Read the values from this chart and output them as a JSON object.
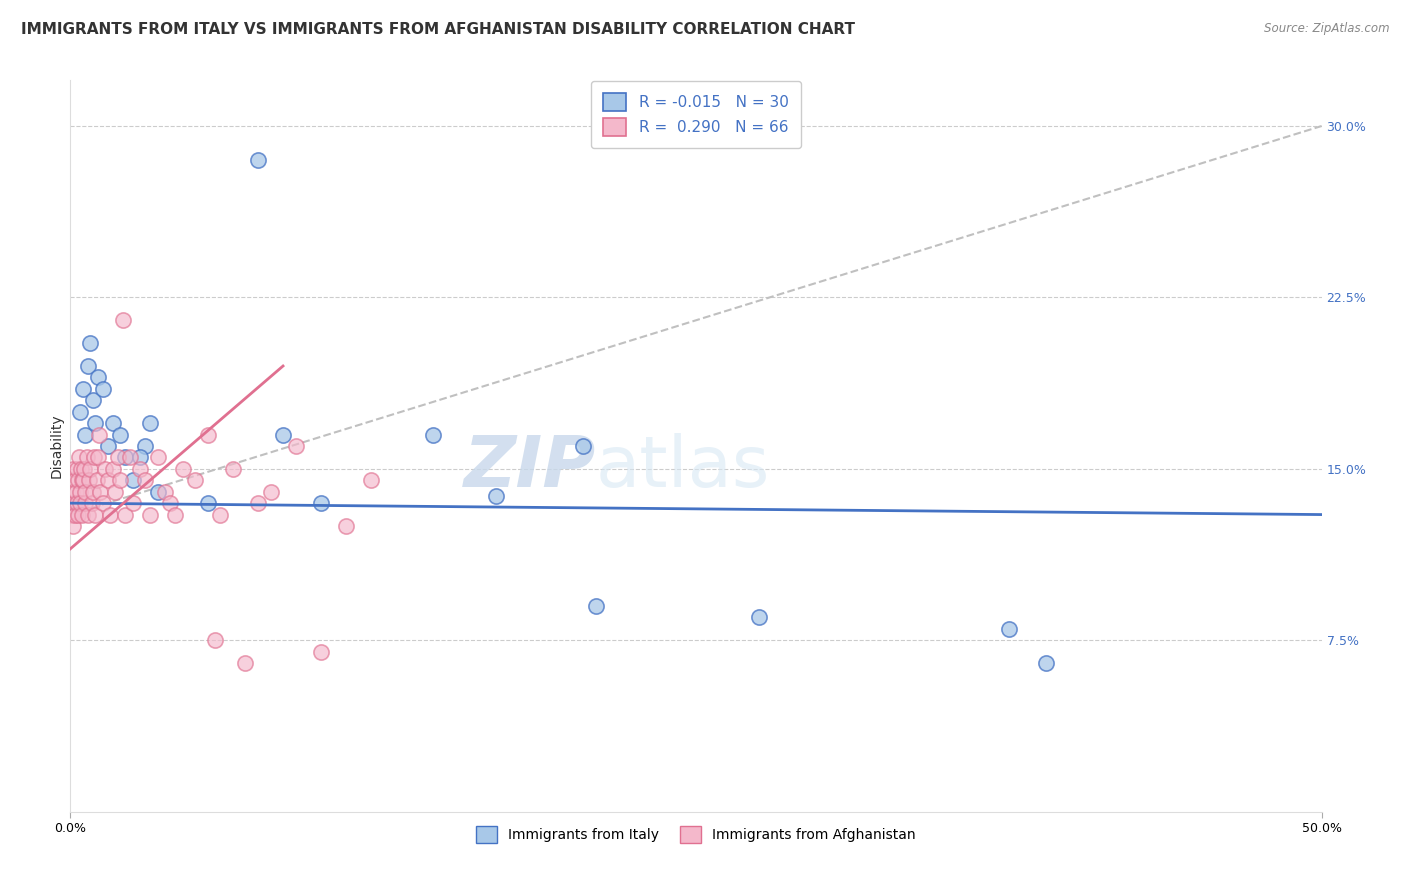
{
  "title": "IMMIGRANTS FROM ITALY VS IMMIGRANTS FROM AFGHANISTAN DISABILITY CORRELATION CHART",
  "source": "Source: ZipAtlas.com",
  "ylabel": "Disability",
  "xlim": [
    0.0,
    50.0
  ],
  "ylim": [
    0.0,
    32.0
  ],
  "y_ticks_right": [
    7.5,
    15.0,
    22.5,
    30.0
  ],
  "italy_color": "#a8c8e8",
  "italy_line_color": "#4472c4",
  "afghanistan_color": "#f4b8cb",
  "afghanistan_line_color": "#e07090",
  "legend_italy_label": "Immigrants from Italy",
  "legend_afghanistan_label": "Immigrants from Afghanistan",
  "italy_R": -0.015,
  "italy_N": 30,
  "afghanistan_R": 0.29,
  "afghanistan_N": 66,
  "italy_x": [
    0.2,
    0.4,
    0.5,
    0.6,
    0.7,
    0.8,
    0.9,
    1.0,
    1.1,
    1.3,
    1.5,
    1.7,
    2.0,
    2.2,
    2.5,
    3.0,
    3.5,
    5.5,
    7.5,
    8.5,
    10.0,
    14.5,
    17.0,
    20.5,
    21.0,
    27.5,
    37.5,
    39.0,
    2.8,
    3.2
  ],
  "italy_y": [
    13.5,
    17.5,
    18.5,
    16.5,
    19.5,
    20.5,
    18.0,
    17.0,
    19.0,
    18.5,
    16.0,
    17.0,
    16.5,
    15.5,
    14.5,
    16.0,
    14.0,
    13.5,
    28.5,
    16.5,
    13.5,
    16.5,
    13.8,
    16.0,
    9.0,
    8.5,
    8.0,
    6.5,
    15.5,
    17.0
  ],
  "afghanistan_x": [
    0.05,
    0.08,
    0.1,
    0.12,
    0.15,
    0.18,
    0.2,
    0.22,
    0.25,
    0.28,
    0.3,
    0.32,
    0.35,
    0.38,
    0.4,
    0.42,
    0.45,
    0.48,
    0.5,
    0.55,
    0.58,
    0.6,
    0.65,
    0.7,
    0.75,
    0.8,
    0.85,
    0.9,
    0.95,
    1.0,
    1.05,
    1.1,
    1.2,
    1.3,
    1.4,
    1.5,
    1.6,
    1.7,
    1.8,
    1.9,
    2.0,
    2.2,
    2.4,
    2.5,
    2.8,
    3.0,
    3.2,
    3.5,
    3.8,
    4.0,
    4.5,
    5.0,
    5.5,
    6.0,
    6.5,
    7.0,
    7.5,
    8.0,
    9.0,
    10.0,
    11.0,
    12.0,
    5.8,
    4.2,
    2.1,
    1.15
  ],
  "afghanistan_y": [
    13.0,
    14.0,
    12.5,
    15.0,
    13.5,
    14.5,
    13.0,
    14.0,
    15.0,
    13.5,
    14.5,
    13.0,
    15.5,
    14.0,
    13.5,
    15.0,
    14.5,
    13.0,
    14.5,
    15.0,
    13.5,
    14.0,
    15.5,
    13.0,
    14.5,
    15.0,
    13.5,
    14.0,
    15.5,
    13.0,
    14.5,
    15.5,
    14.0,
    13.5,
    15.0,
    14.5,
    13.0,
    15.0,
    14.0,
    15.5,
    14.5,
    13.0,
    15.5,
    13.5,
    15.0,
    14.5,
    13.0,
    15.5,
    14.0,
    13.5,
    15.0,
    14.5,
    16.5,
    13.0,
    15.0,
    6.5,
    13.5,
    14.0,
    16.0,
    7.0,
    12.5,
    14.5,
    7.5,
    13.0,
    21.5,
    16.5
  ],
  "dashed_line_x": [
    0.0,
    50.0
  ],
  "dashed_line_y": [
    13.0,
    30.0
  ],
  "background_color": "#ffffff",
  "grid_color": "#cccccc",
  "watermark_zip": "ZIP",
  "watermark_atlas": "atlas",
  "title_fontsize": 11,
  "axis_fontsize": 10,
  "tick_fontsize": 9,
  "legend_fontsize": 11,
  "source_text": "Source: ZipAtlas.com"
}
